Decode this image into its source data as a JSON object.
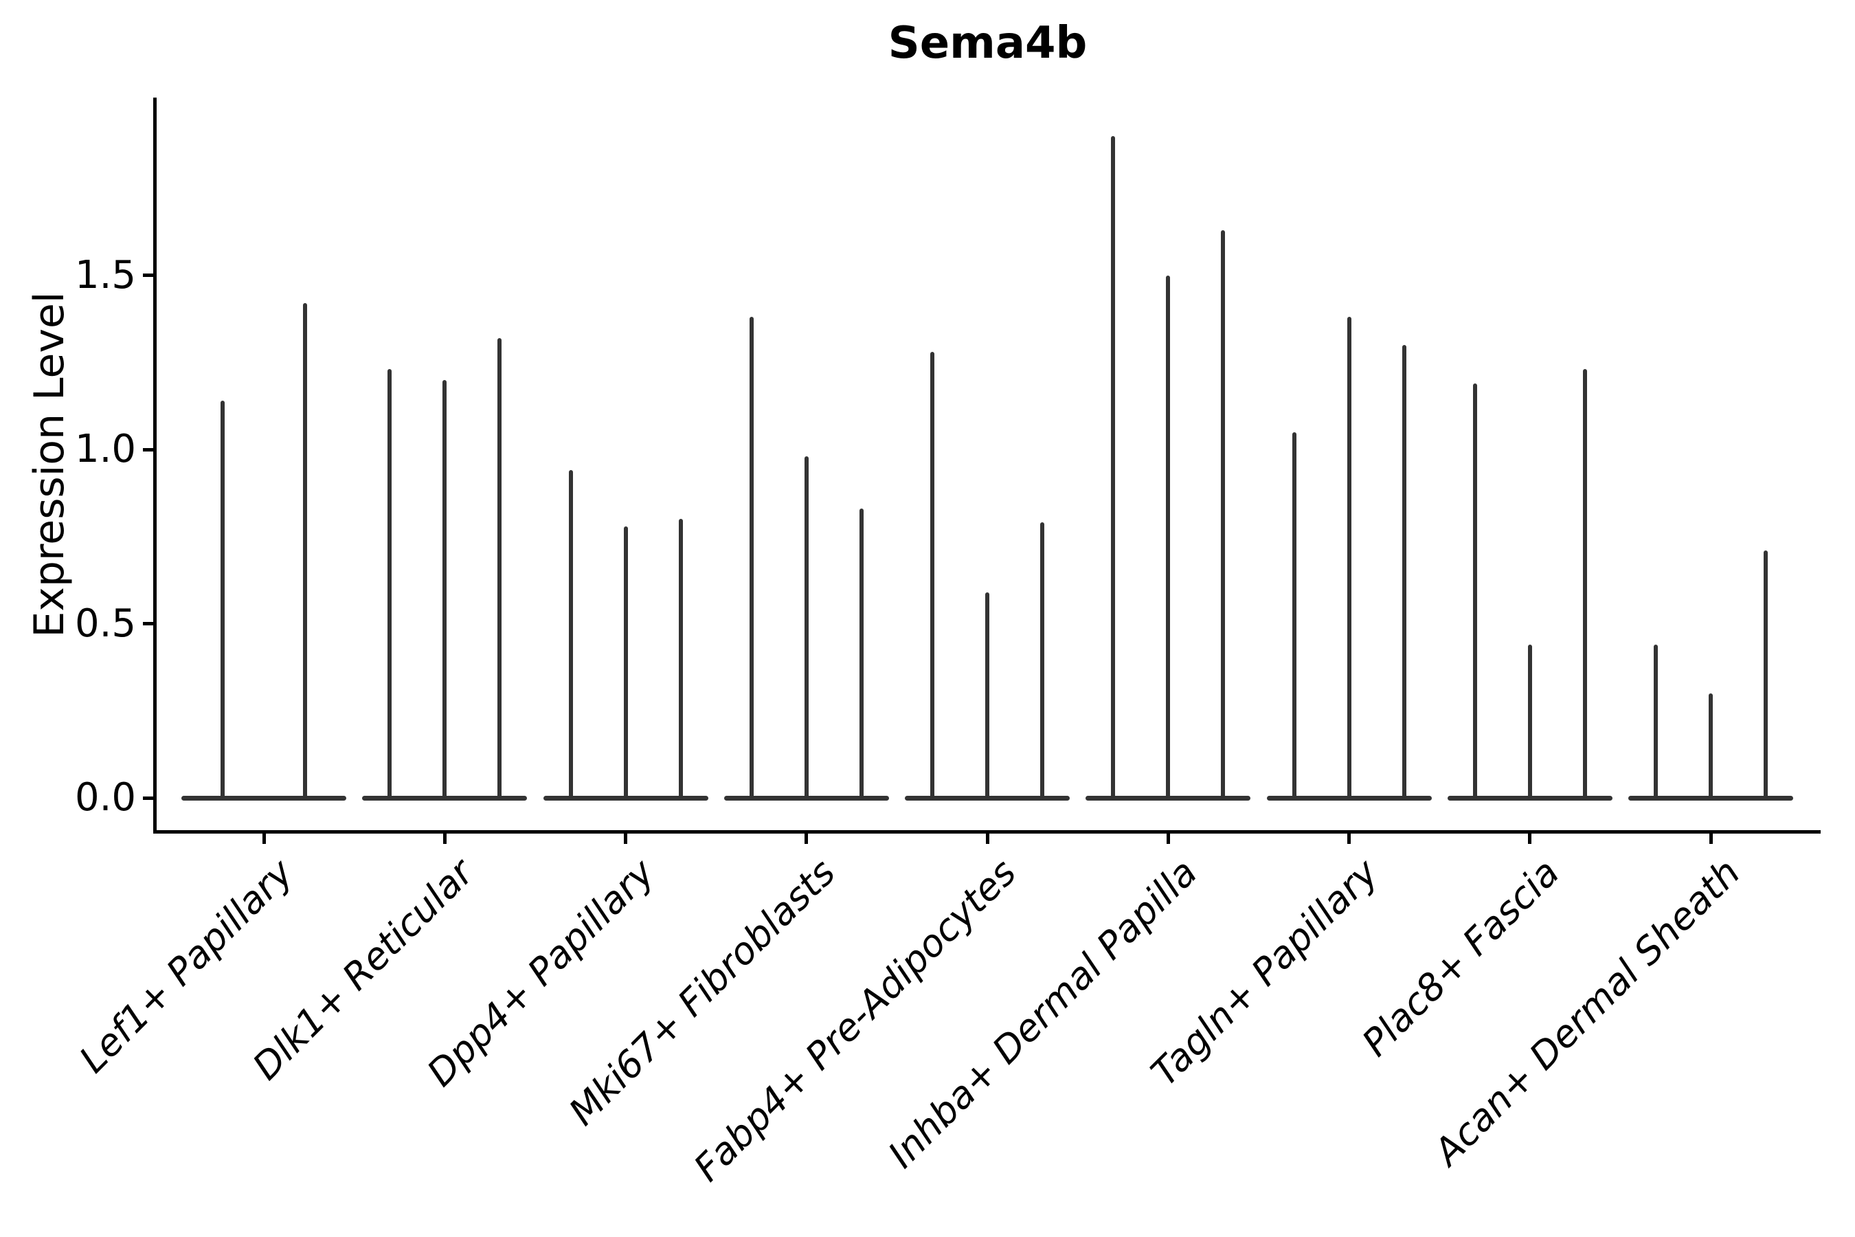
{
  "chart_data": {
    "type": "violin",
    "title": "Sema4b",
    "ylabel": "Expression Level",
    "xlabel": "",
    "categories": [
      "Lef1+ Papillary",
      "Dlk1+ Reticular",
      "Dpp4+ Papillary",
      "Mki67+ Fibroblasts",
      "Fabp4+ Pre-Adipocytes",
      "Inhba+ Dermal Papilla",
      "Tagln+ Papillary",
      "Plac8+ Fascia",
      "Acan+ Dermal Sheath"
    ],
    "violins_per_category": [
      [
        1.14,
        1.42
      ],
      [
        1.23,
        1.2,
        1.32
      ],
      [
        0.94,
        0.78,
        0.8
      ],
      [
        1.38,
        0.98,
        0.83
      ],
      [
        1.28,
        0.59,
        0.79
      ],
      [
        1.9,
        1.5,
        1.63
      ],
      [
        1.05,
        1.38,
        1.3
      ],
      [
        1.19,
        0.44,
        1.23
      ],
      [
        0.44,
        0.3,
        0.71
      ]
    ],
    "violin_shape": "thin spike rising from flat baseline at 0 (near-zero density above 0)",
    "baseline_value": 0.0,
    "ytick_values": [
      0.0,
      0.5,
      1.0,
      1.5
    ],
    "ytick_labels": [
      "0.0",
      "0.5",
      "1.0",
      "1.5"
    ],
    "ylim": [
      0.0,
      2.0
    ],
    "grid": false,
    "legend_position": "none",
    "x_label_rotation_deg": 45,
    "x_label_style": "italic",
    "colors": {
      "violin": "#333333",
      "axis": "#000000",
      "text": "#000000",
      "background": "#ffffff"
    }
  }
}
